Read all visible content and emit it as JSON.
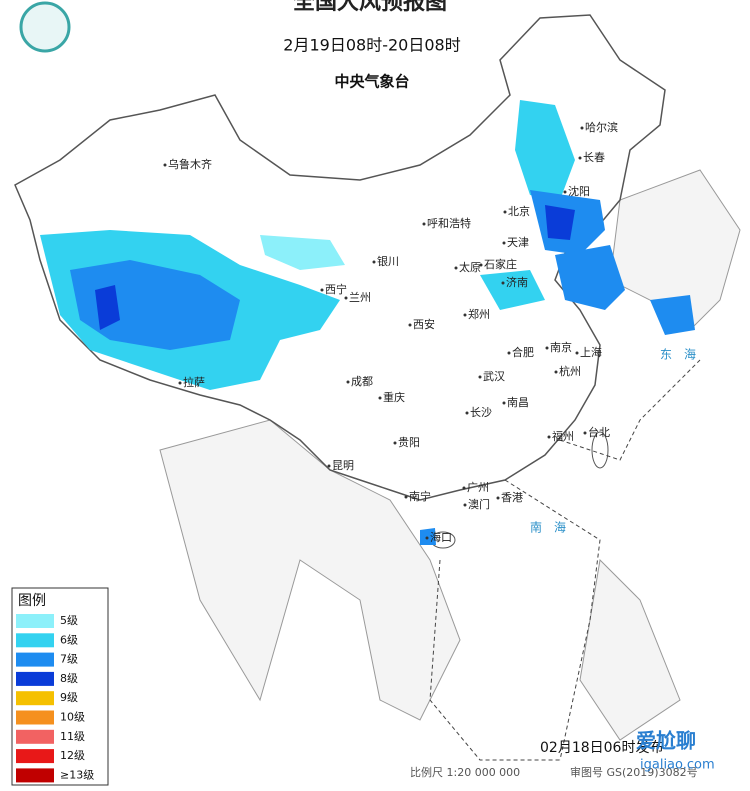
{
  "header": {
    "title": "全国大风预报图",
    "period": "2月19日08时-20日08时",
    "issuer": "中央气象台"
  },
  "legend": {
    "title": "图例",
    "items": [
      {
        "label": "5级",
        "color": "#8cf0fa"
      },
      {
        "label": "6级",
        "color": "#33d2f0"
      },
      {
        "label": "7级",
        "color": "#1e8cf0"
      },
      {
        "label": "8级",
        "color": "#0a3cd8"
      },
      {
        "label": "9级",
        "color": "#f5c000"
      },
      {
        "label": "10级",
        "color": "#f5901e"
      },
      {
        "label": "11级",
        "color": "#f26262"
      },
      {
        "label": "12级",
        "color": "#e81818"
      },
      {
        "label": "≥13级",
        "color": "#c00000"
      }
    ]
  },
  "places": {
    "cities": [
      "乌鲁木齐",
      "哈尔滨",
      "长春",
      "沈阳",
      "北京",
      "天津",
      "呼和浩特",
      "石家庄",
      "太原",
      "银川",
      "济南",
      "西宁",
      "兰州",
      "郑州",
      "西安",
      "合肥",
      "南京",
      "上海",
      "成都",
      "武汉",
      "杭州",
      "拉萨",
      "重庆",
      "南昌",
      "长沙",
      "福州",
      "台北",
      "贵阳",
      "昆明",
      "广州",
      "南宁",
      "香港",
      "澳门",
      "海口"
    ],
    "seas": [
      "东海",
      "南海"
    ]
  },
  "footer": {
    "issued": "02月18日06时发布",
    "scale": "比例尺 1:20 000 000",
    "approval": "审图号 GS(2019)3082号"
  },
  "watermark": {
    "name": "爱尬聊",
    "site": "igaliao.com"
  }
}
